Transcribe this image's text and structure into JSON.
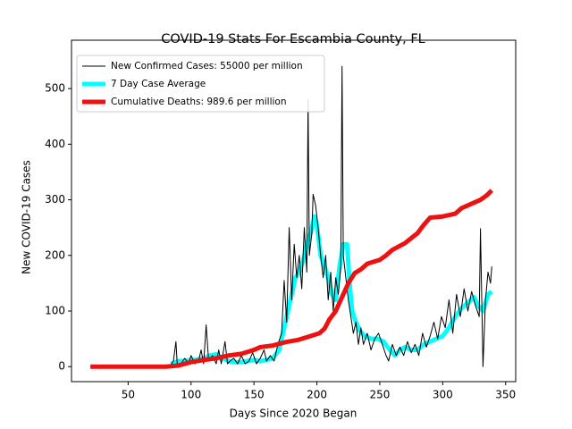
{
  "chart_data": {
    "type": "line",
    "title": "COVID-19 Stats For Escambia County, FL",
    "xlabel": "Days Since 2020 Began",
    "ylabel": "New COVID-19 Cases",
    "xlim": [
      5,
      358
    ],
    "ylim": [
      -27,
      587
    ],
    "xticks": [
      50,
      100,
      150,
      200,
      250,
      300,
      350
    ],
    "yticks": [
      0,
      100,
      200,
      300,
      400,
      500
    ],
    "legend": "upper left",
    "series": [
      {
        "name": "New Confirmed Cases: 55000 per million",
        "color": "#000000",
        "width": 1,
        "x": [
          83,
          86,
          88,
          89,
          92,
          95,
          98,
          100,
          103,
          106,
          108,
          110,
          112,
          114,
          117,
          120,
          122,
          124,
          127,
          129,
          131,
          134,
          137,
          140,
          143,
          146,
          149,
          152,
          155,
          158,
          160,
          163,
          166,
          169,
          172,
          174,
          176,
          178,
          180,
          182,
          184,
          186,
          188,
          190,
          192,
          193,
          194,
          196,
          197,
          199,
          201,
          203,
          205,
          207,
          209,
          211,
          213,
          215,
          217,
          219,
          220,
          221,
          223,
          225,
          227,
          229,
          231,
          233,
          235,
          237,
          240,
          243,
          246,
          249,
          252,
          255,
          257,
          260,
          263,
          266,
          269,
          272,
          275,
          278,
          281,
          284,
          287,
          290,
          293,
          296,
          299,
          302,
          305,
          308,
          311,
          314,
          317,
          320,
          323,
          326,
          329,
          330,
          332,
          334,
          336,
          338,
          339
        ],
        "values": [
          0,
          10,
          45,
          5,
          5,
          15,
          5,
          20,
          5,
          10,
          30,
          5,
          75,
          10,
          20,
          5,
          30,
          5,
          45,
          5,
          10,
          15,
          5,
          20,
          5,
          10,
          25,
          5,
          15,
          30,
          10,
          20,
          10,
          40,
          60,
          155,
          80,
          250,
          120,
          220,
          160,
          200,
          140,
          250,
          170,
          480,
          200,
          240,
          310,
          290,
          250,
          200,
          160,
          200,
          120,
          170,
          100,
          160,
          130,
          180,
          540,
          200,
          160,
          120,
          90,
          60,
          80,
          40,
          70,
          40,
          60,
          30,
          50,
          60,
          40,
          20,
          10,
          40,
          20,
          35,
          20,
          45,
          25,
          40,
          20,
          60,
          35,
          55,
          80,
          50,
          90,
          70,
          120,
          60,
          130,
          90,
          140,
          100,
          135,
          110,
          90,
          248,
          0,
          120,
          170,
          150,
          180
        ]
      },
      {
        "name": "7 Day Case Average",
        "color": "#00ffff",
        "width": 5,
        "x": [
          84,
          90,
          95,
          100,
          105,
          110,
          115,
          120,
          125,
          130,
          135,
          140,
          145,
          150,
          155,
          160,
          165,
          170,
          175,
          180,
          183,
          186,
          189,
          192,
          195,
          198,
          200,
          203,
          206,
          209,
          212,
          215,
          218,
          221,
          224,
          226,
          228,
          231,
          234,
          238,
          243,
          248,
          253,
          258,
          262,
          266,
          270,
          275,
          280,
          285,
          290,
          295,
          300,
          305,
          310,
          315,
          320,
          325,
          328,
          332,
          336,
          339
        ],
        "values": [
          5,
          10,
          10,
          12,
          13,
          15,
          20,
          22,
          15,
          10,
          8,
          8,
          10,
          12,
          10,
          12,
          15,
          30,
          80,
          130,
          160,
          170,
          190,
          220,
          240,
          270,
          255,
          200,
          180,
          160,
          130,
          120,
          180,
          220,
          220,
          150,
          100,
          80,
          65,
          55,
          50,
          50,
          45,
          30,
          20,
          30,
          35,
          30,
          30,
          40,
          45,
          50,
          55,
          70,
          90,
          105,
          115,
          125,
          110,
          100,
          130,
          135
        ]
      },
      {
        "name": "Cumulative Deaths: 989.6 per million",
        "color": "#ee1111",
        "width": 5,
        "x": [
          20,
          50,
          80,
          90,
          100,
          110,
          120,
          130,
          140,
          150,
          155,
          165,
          175,
          185,
          195,
          202,
          206,
          210,
          215,
          220,
          225,
          230,
          235,
          240,
          250,
          255,
          260,
          270,
          280,
          285,
          290,
          300,
          310,
          315,
          325,
          330,
          335,
          339
        ],
        "values": [
          0,
          0,
          0,
          2,
          8,
          12,
          15,
          20,
          23,
          30,
          35,
          38,
          44,
          48,
          55,
          60,
          68,
          85,
          100,
          125,
          150,
          168,
          175,
          185,
          192,
          200,
          210,
          222,
          240,
          255,
          268,
          270,
          275,
          285,
          295,
          300,
          308,
          317
        ]
      }
    ]
  }
}
